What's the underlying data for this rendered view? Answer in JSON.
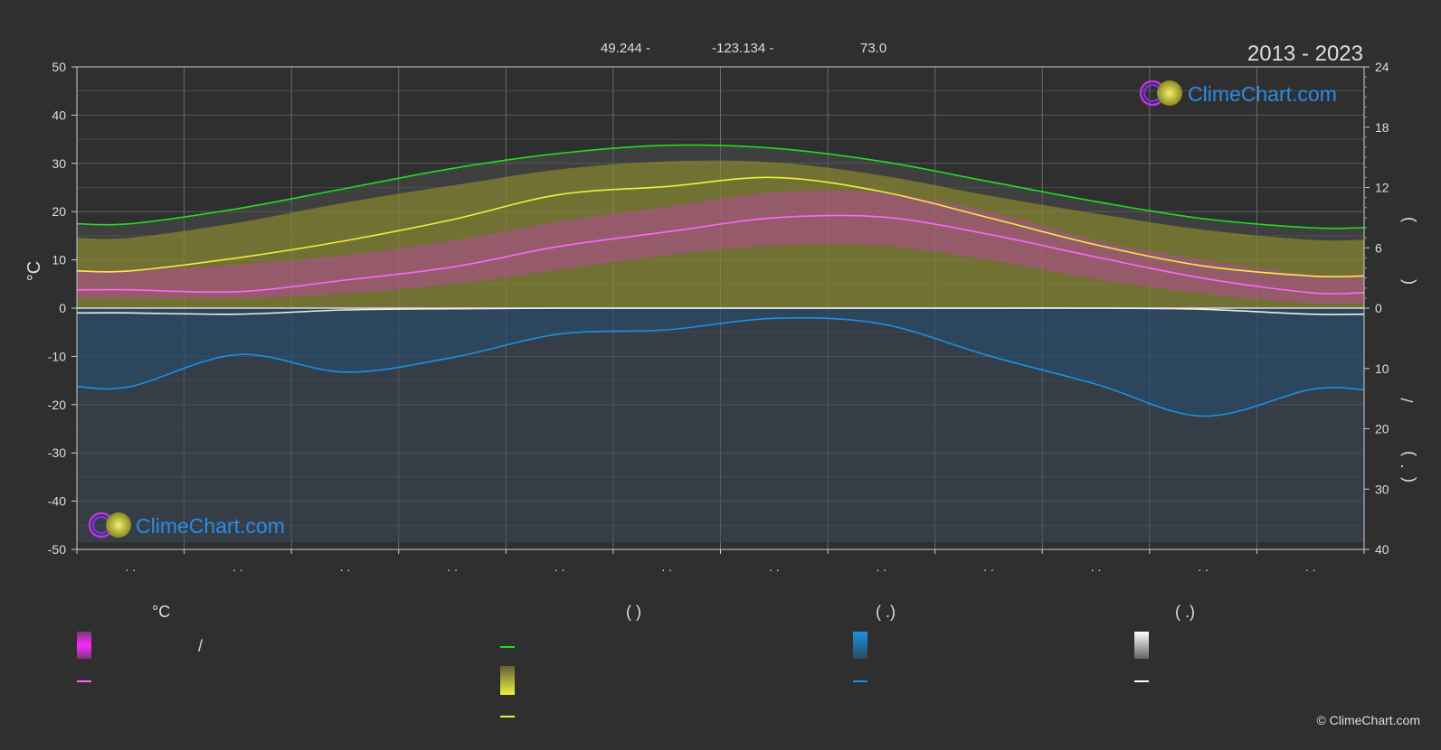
{
  "header": {
    "lat_text": "49.244 -",
    "lon_text": "-123.134 -",
    "elev_text": "73.0",
    "period": "2013 - 2023"
  },
  "brand": {
    "name": "ClimeChart.com",
    "copyright": "© ClimeChart.com"
  },
  "colors": {
    "background": "#2f2f2f",
    "grid": "#5a5a5a",
    "daylight": "#22dd22",
    "sunshine": "#f0f040",
    "temp_mean": "#ff66ff",
    "precip": "#1e8fe0",
    "snow": "#eeeeee",
    "brand_text": "#2a8ce8"
  },
  "chart_data": {
    "type": "line",
    "x": [
      0,
      1,
      2,
      3,
      4,
      5,
      6,
      7,
      8,
      9,
      10,
      11
    ],
    "month_labels": [
      ". .",
      ". .",
      ". .",
      ". .",
      ". .",
      ". .",
      ". .",
      ". .",
      ". .",
      ". .",
      ". .",
      ". ."
    ],
    "y_left": {
      "label": "°C",
      "range": [
        -50,
        50
      ],
      "ticks": [
        50,
        40,
        30,
        20,
        10,
        0,
        -10,
        -20,
        -30,
        -40,
        -50
      ]
    },
    "y_right_top": {
      "label_parts": [
        ")",
        "("
      ],
      "range": [
        0,
        24
      ],
      "ticks": [
        24,
        18,
        12,
        6,
        0
      ]
    },
    "y_right_bottom": {
      "label_parts": [
        "/",
        ")",
        "(",
        "."
      ],
      "range": [
        0,
        40
      ],
      "ticks": [
        0,
        10,
        20,
        30,
        40
      ]
    },
    "grid": true,
    "series": [
      {
        "key": "daylight",
        "axis": "hours",
        "values": [
          8.4,
          9.9,
          11.9,
          13.9,
          15.4,
          16.2,
          15.9,
          14.6,
          12.6,
          10.6,
          8.9,
          8.0
        ]
      },
      {
        "key": "sunshine_band",
        "axis": "hours",
        "values": [
          7.0,
          8.5,
          10.5,
          12.2,
          13.8,
          14.6,
          14.5,
          13.2,
          11.2,
          9.4,
          7.8,
          6.8
        ]
      },
      {
        "key": "sunshine",
        "axis": "hours",
        "values": [
          3.7,
          5.0,
          6.7,
          8.8,
          11.3,
          12.1,
          13.0,
          11.6,
          9.0,
          6.3,
          4.2,
          3.2
        ]
      },
      {
        "key": "temp_max_band",
        "axis": "celsius",
        "values": [
          8,
          9,
          11,
          14,
          18,
          21,
          24,
          24,
          20,
          14,
          10,
          7
        ]
      },
      {
        "key": "temp_min_band",
        "axis": "celsius",
        "values": [
          2,
          2,
          3,
          5,
          8,
          11,
          13,
          13,
          10,
          6,
          3,
          1
        ]
      },
      {
        "key": "temp_mean",
        "axis": "celsius",
        "values": [
          3.8,
          3.4,
          5.8,
          8.5,
          12.8,
          15.8,
          18.7,
          18.9,
          15.3,
          10.6,
          6.2,
          3.2
        ]
      },
      {
        "key": "precip",
        "axis": "mm",
        "values": [
          13.0,
          7.7,
          10.6,
          8.2,
          4.3,
          3.6,
          1.7,
          2.6,
          7.9,
          12.6,
          17.9,
          13.5
        ]
      },
      {
        "key": "snow",
        "axis": "mm",
        "values": [
          0.8,
          1.0,
          0.3,
          0.1,
          0.0,
          0.0,
          0.0,
          0.0,
          0.0,
          0.0,
          0.2,
          1.0
        ]
      }
    ]
  },
  "legend": {
    "col1": {
      "heading": "°C",
      "item1_text": "/"
    },
    "col2": {
      "heading": "(         )"
    },
    "col3": {
      "heading": "(   .)"
    },
    "col4": {
      "heading": "(   .)"
    }
  }
}
